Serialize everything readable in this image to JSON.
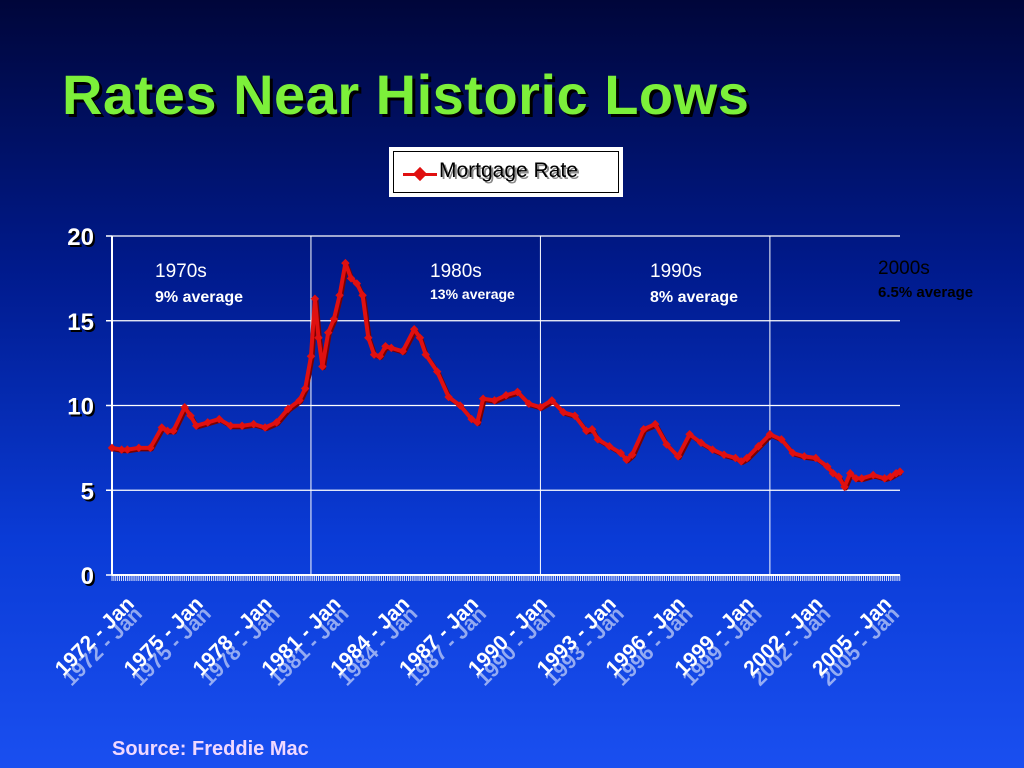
{
  "slide": {
    "title": "Rates Near Historic Lows",
    "source": "Source: Freddie Mac"
  },
  "colors": {
    "title": "#7cf03a",
    "series": "#e01010",
    "decade_title": "#ffffff",
    "decade_avg": "#ffffff"
  },
  "legend": {
    "label": "Mortgage Rate",
    "placement": "top-center"
  },
  "decades": [
    {
      "name": "1970s",
      "average": "9% average"
    },
    {
      "name": "1980s",
      "average": "13% average"
    },
    {
      "name": "1990s",
      "average": "8% average"
    },
    {
      "name": "2000s",
      "average": "6.5% average"
    }
  ],
  "chart_data": {
    "type": "line",
    "title": "Rates Near Historic Lows",
    "xlabel": "",
    "ylabel": "",
    "ylim": [
      0,
      20
    ],
    "yticks": [
      0,
      5,
      10,
      15,
      20
    ],
    "xlim": [
      1971.33,
      2005.67
    ],
    "grid": true,
    "legend": "top-center",
    "xtick_labels": [
      "1972 - Jan",
      "1975 - Jan",
      "1978 - Jan",
      "1981 - Jan",
      "1984 - Jan",
      "1987 - Jan",
      "1990 - Jan",
      "1993 - Jan",
      "1996 - Jan",
      "1999 - Jan",
      "2002 - Jan",
      "2005 - Jan"
    ],
    "xtick_values": [
      1972,
      1975,
      1978,
      1981,
      1984,
      1987,
      1990,
      1993,
      1996,
      1999,
      2002,
      2005
    ],
    "decade_dividers": [
      1980.0,
      1990.0,
      2000.0
    ],
    "series": [
      {
        "name": "Mortgage Rate",
        "x": [
          1971.33,
          1971.75,
          1972.0,
          1972.5,
          1973.0,
          1973.5,
          1973.75,
          1974.0,
          1974.5,
          1974.75,
          1975.0,
          1975.5,
          1976.0,
          1976.5,
          1977.0,
          1977.5,
          1978.0,
          1978.5,
          1979.0,
          1979.5,
          1979.75,
          1980.0,
          1980.17,
          1980.33,
          1980.5,
          1980.75,
          1981.0,
          1981.25,
          1981.5,
          1981.75,
          1982.0,
          1982.25,
          1982.5,
          1982.75,
          1983.0,
          1983.25,
          1983.5,
          1984.0,
          1984.5,
          1984.75,
          1985.0,
          1985.5,
          1986.0,
          1986.5,
          1987.0,
          1987.25,
          1987.5,
          1988.0,
          1988.5,
          1989.0,
          1989.5,
          1990.0,
          1990.5,
          1991.0,
          1991.5,
          1992.0,
          1992.25,
          1992.5,
          1993.0,
          1993.5,
          1993.75,
          1994.0,
          1994.5,
          1995.0,
          1995.5,
          1996.0,
          1996.5,
          1997.0,
          1997.5,
          1998.0,
          1998.5,
          1998.75,
          1999.0,
          1999.5,
          2000.0,
          2000.5,
          2001.0,
          2001.5,
          2002.0,
          2002.5,
          2002.75,
          2003.0,
          2003.25,
          2003.5,
          2003.75,
          2004.0,
          2004.5,
          2005.0,
          2005.25,
          2005.5,
          2005.67
        ],
        "values": [
          7.5,
          7.4,
          7.4,
          7.5,
          7.5,
          8.7,
          8.5,
          8.5,
          9.9,
          9.4,
          8.8,
          9.0,
          9.2,
          8.8,
          8.8,
          8.9,
          8.7,
          9.0,
          9.8,
          10.3,
          11.0,
          12.9,
          16.3,
          14.0,
          12.3,
          14.3,
          15.1,
          16.5,
          18.4,
          17.5,
          17.2,
          16.5,
          14.0,
          13.0,
          12.9,
          13.5,
          13.4,
          13.2,
          14.5,
          14.0,
          13.0,
          12.0,
          10.5,
          10.0,
          9.2,
          9.0,
          10.4,
          10.3,
          10.6,
          10.8,
          10.1,
          9.9,
          10.3,
          9.6,
          9.4,
          8.5,
          8.6,
          8.0,
          7.6,
          7.2,
          6.8,
          7.1,
          8.6,
          8.9,
          7.7,
          7.0,
          8.3,
          7.8,
          7.4,
          7.1,
          6.9,
          6.7,
          6.9,
          7.6,
          8.3,
          8.0,
          7.2,
          7.0,
          6.9,
          6.4,
          6.0,
          5.8,
          5.2,
          6.0,
          5.7,
          5.7,
          5.9,
          5.7,
          5.8,
          6.0,
          6.1
        ]
      }
    ]
  }
}
